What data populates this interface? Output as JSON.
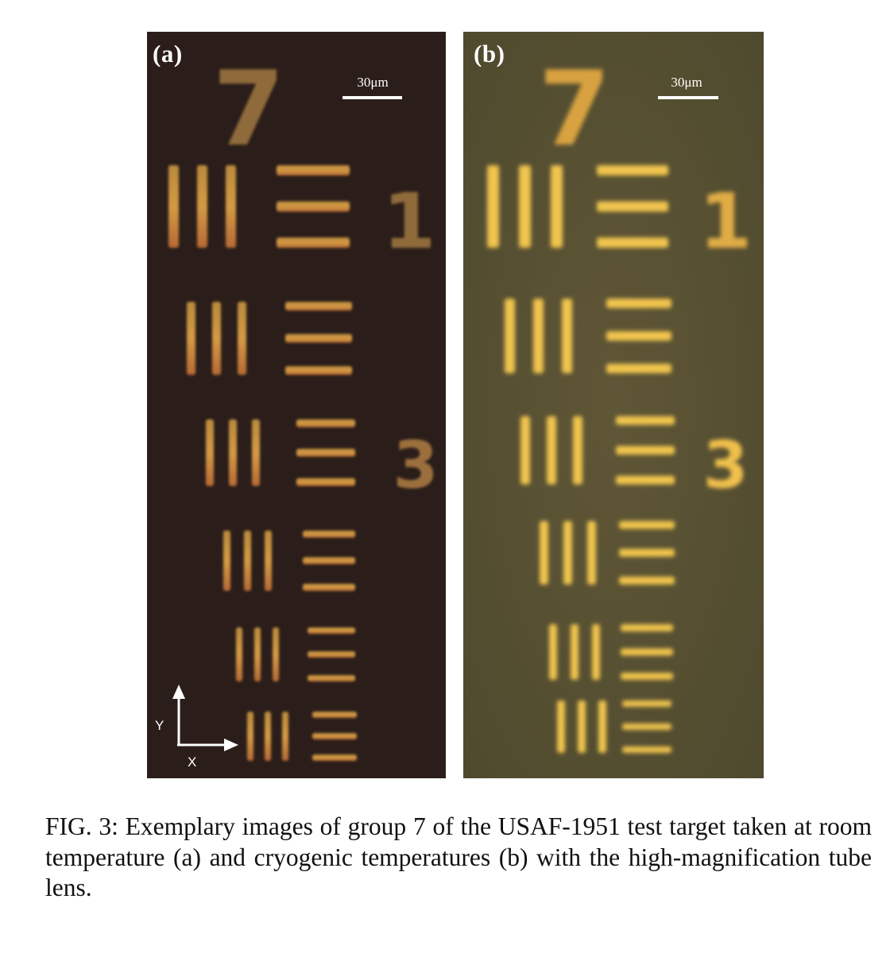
{
  "figure": {
    "panels": [
      {
        "label": "(a)",
        "scale_bar": "30μm",
        "condition": "room temperature"
      },
      {
        "label": "(b)",
        "scale_bar": "30μm",
        "condition": "cryogenic temperatures"
      }
    ],
    "target_group_numeral": "7",
    "element_numbers": [
      "1",
      "3"
    ],
    "axes": {
      "y": "Y",
      "x": "X"
    },
    "colors": {
      "panel_a_background": "#2b1e1a",
      "panel_b_background": "#5b5233",
      "bar_a": "#c88e3e",
      "bar_b": "#f0c44e"
    }
  },
  "caption": "FIG. 3: Exemplary images of group 7 of the USAF-1951 test target taken at room temperature (a) and cryogenic temperatures (b) with the high-magnification tube lens."
}
